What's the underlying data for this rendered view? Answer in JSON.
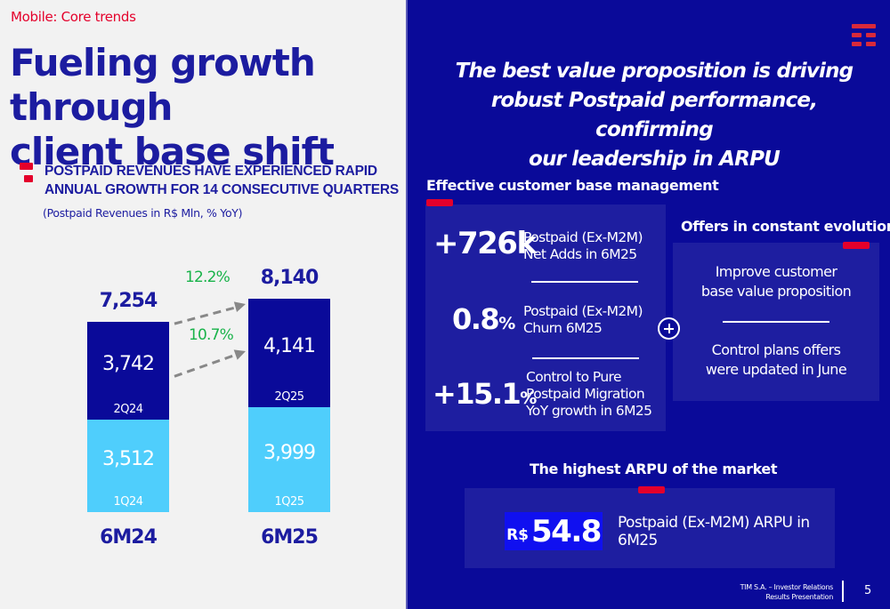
{
  "header": {
    "section": "Mobile: Core trends",
    "title_line1": "Fueling growth through",
    "title_line2": "client base shift"
  },
  "chart_block": {
    "headline_line1": "POSTPAID REVENUES HAVE EXPERIENCED RAPID",
    "headline_line2": "ANNUAL GROWTH FOR 14 CONSECUTIVE QUARTERS",
    "subtitle": "(Postpaid Revenues in R$ Mln, % YoY)"
  },
  "colors": {
    "dark_navy": "#0a0a99",
    "title_blue": "#1c1ca0",
    "q2_bar": "#0a0a99",
    "q1_bar": "#4fcefc",
    "growth_green": "#19b34a",
    "accent_red": "#e4002b",
    "arpu_badge": "#1010f0"
  },
  "chart_data": {
    "type": "bar",
    "stacked": true,
    "title": "Postpaid Revenues in R$ Mln, % YoY",
    "categories": [
      "6M24",
      "6M25"
    ],
    "series": [
      {
        "name": "1Q",
        "labels": [
          "1Q24",
          "1Q25"
        ],
        "values": [
          3512,
          3999
        ],
        "display": [
          "3,512",
          "3,999"
        ],
        "color": "#4fcefc"
      },
      {
        "name": "2Q",
        "labels": [
          "2Q24",
          "2Q25"
        ],
        "values": [
          3742,
          4141
        ],
        "display": [
          "3,742",
          "4,141"
        ],
        "color": "#0a0a99"
      }
    ],
    "totals": [
      7254,
      8140
    ],
    "totals_display": [
      "7,254",
      "8,140"
    ],
    "annotations": [
      {
        "text": "12.2%",
        "meaning": "YoY growth of 6M total"
      },
      {
        "text": "10.7%",
        "meaning": "YoY growth of 2Q"
      }
    ],
    "xlabel": "",
    "ylabel": "",
    "ylim": [
      0,
      8140
    ]
  },
  "right": {
    "tagline_line1": "The best value proposition is driving",
    "tagline_line2": "robust Postpaid performance, confirming",
    "tagline_line3": "our leadership in ARPU",
    "customer_base": {
      "title": "Effective customer base management",
      "kpis": [
        {
          "value": "+726k",
          "unit": "",
          "desc_line1": "Postpaid (Ex-M2M)",
          "desc_line2": "Net Adds in 6M25",
          "desc_line3": ""
        },
        {
          "value": "0.8",
          "unit": "%",
          "desc_line1": "Postpaid (Ex-M2M)",
          "desc_line2": "Churn 6M25",
          "desc_line3": ""
        },
        {
          "value": "+15.1",
          "unit": "%",
          "desc_line1": "Control to Pure",
          "desc_line2": "Postpaid Migration",
          "desc_line3": "YoY growth in 6M25"
        }
      ]
    },
    "offers": {
      "title": "Offers in constant evolution",
      "item1_line1": "Improve customer",
      "item1_line2": "base value proposition",
      "item2_line1": "Control plans offers",
      "item2_line2": "were updated in June"
    },
    "arpu": {
      "title": "The highest ARPU of the market",
      "currency": "R$",
      "value": "54.8",
      "desc_line1": "Postpaid (Ex-M2M) ARPU in",
      "desc_line2": "6M25"
    }
  },
  "footer": {
    "line1": "TIM S.A. – Investor Relations",
    "line2": "Results Presentation",
    "page": "5"
  }
}
